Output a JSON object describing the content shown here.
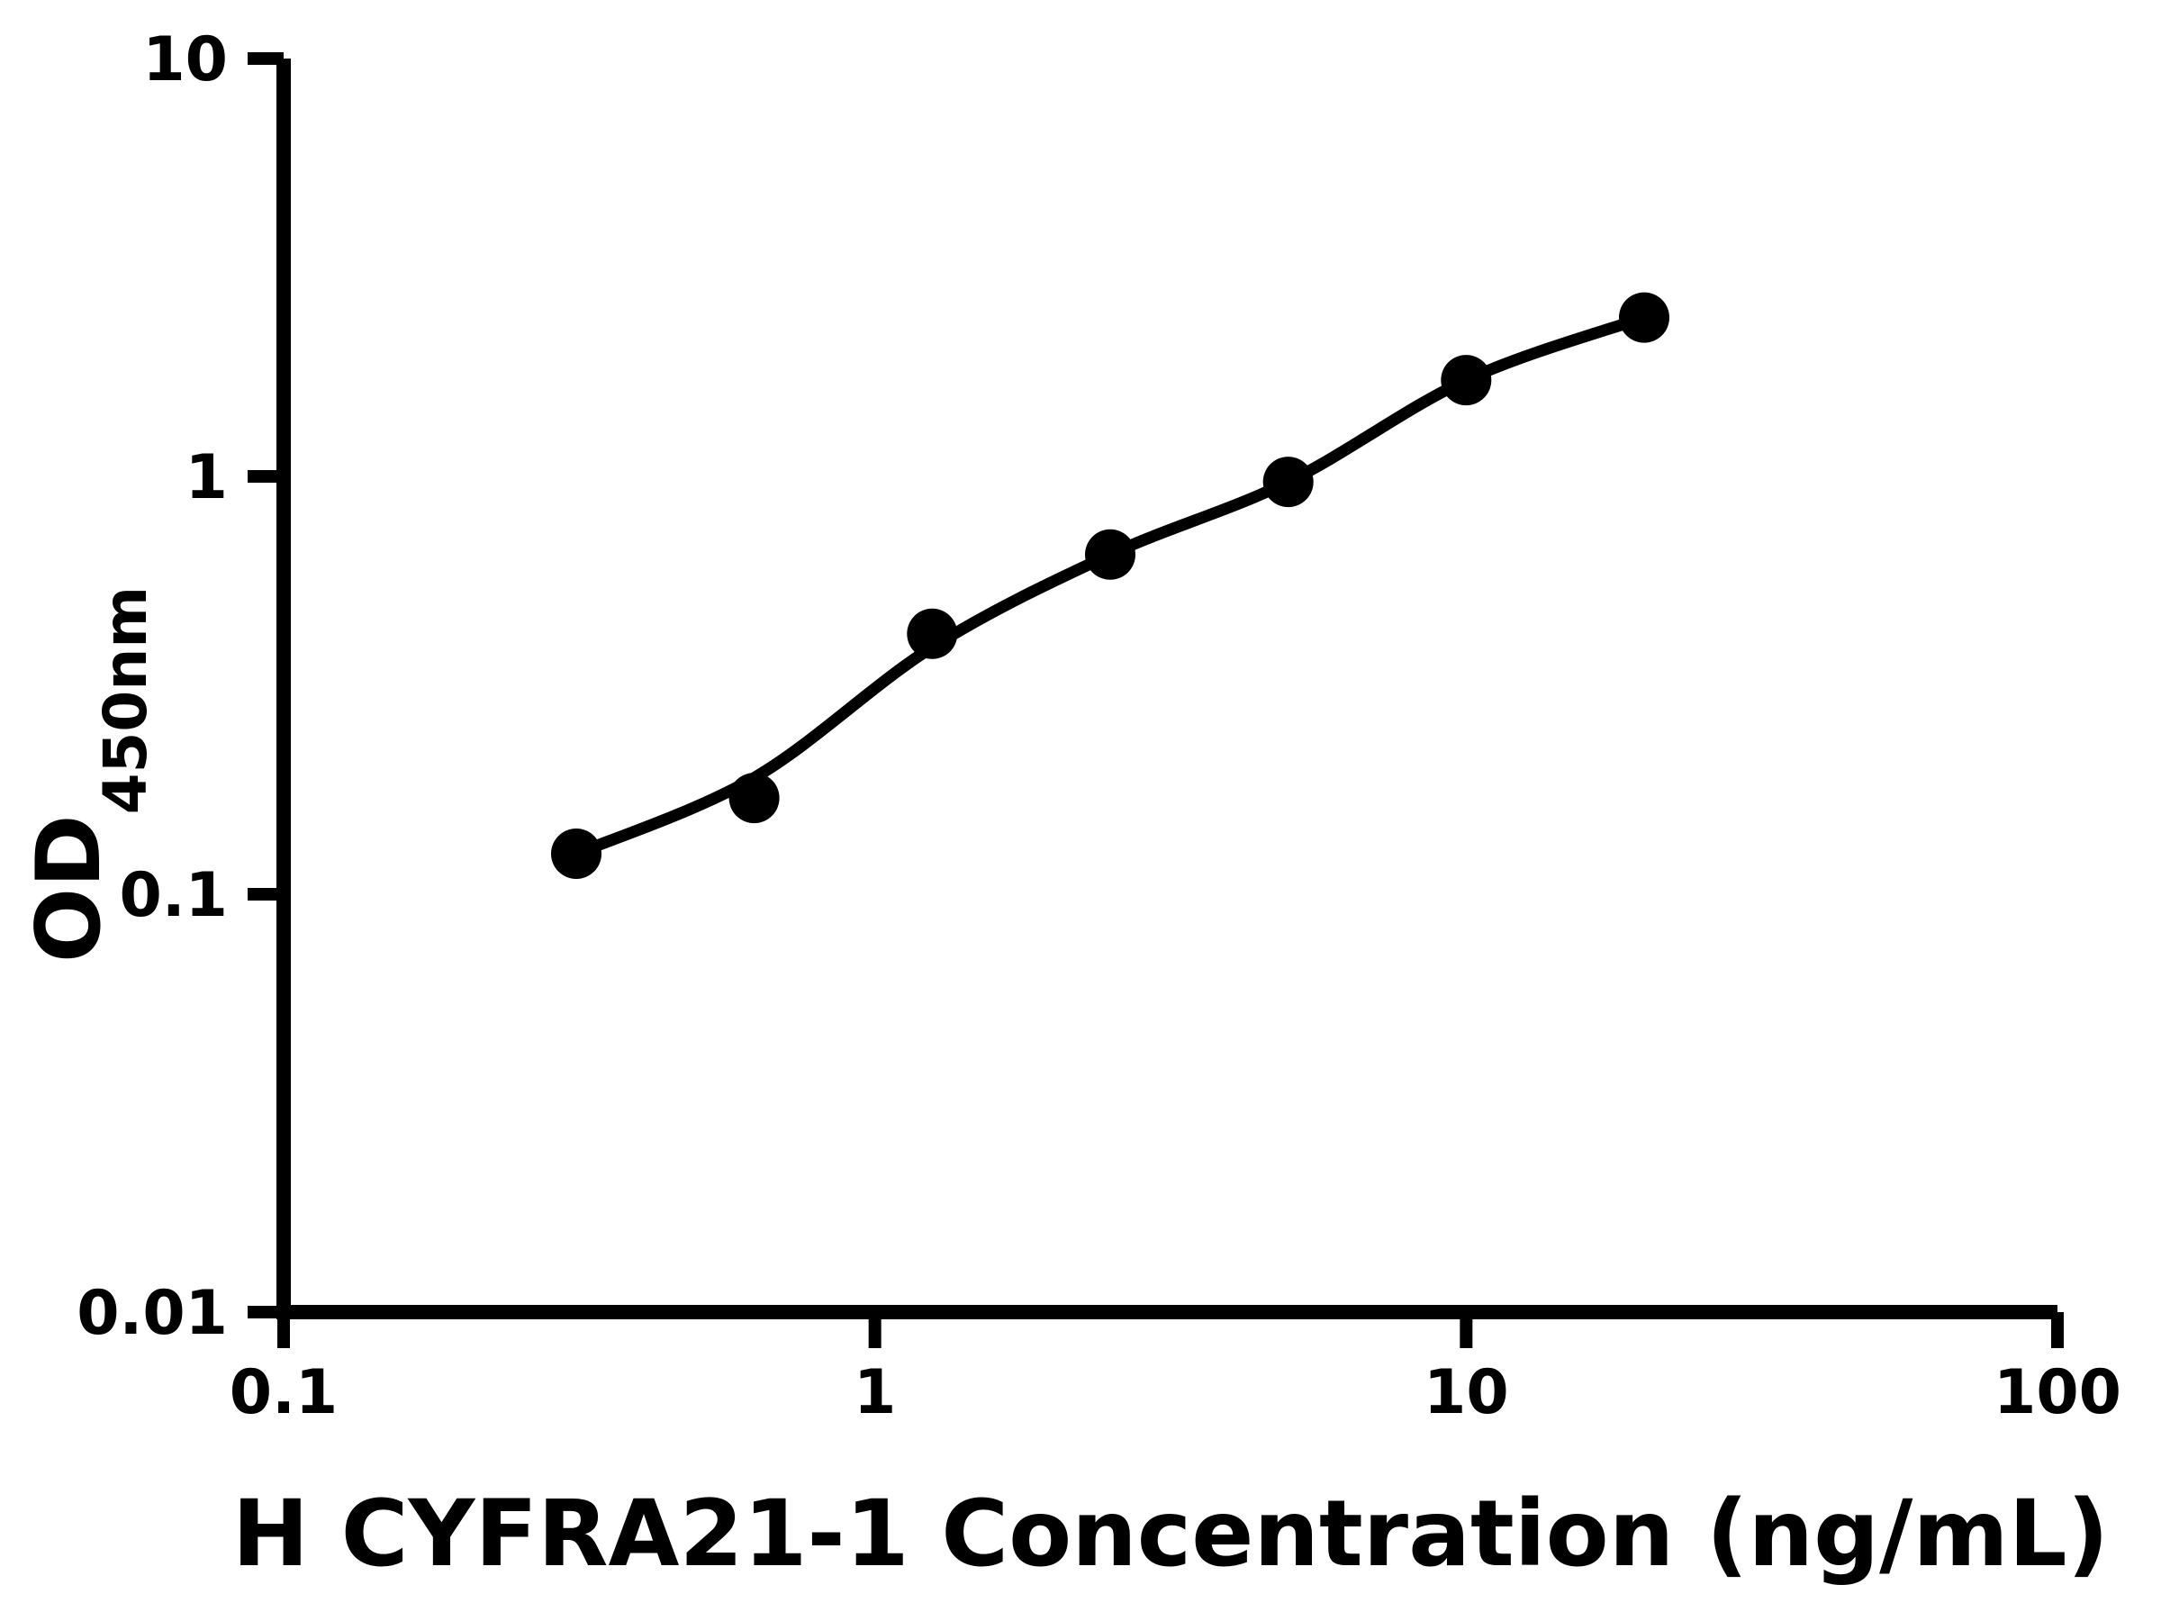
{
  "figure": {
    "background_color": "#ffffff",
    "line_color": "#000000"
  },
  "chart_data": {
    "type": "scatter",
    "title": "",
    "xlabel": "H CYFRA21-1 Concentration (ng/mL)",
    "ylabel_main": "OD",
    "ylabel_sub": "450nm",
    "x_scale": "log",
    "y_scale": "log",
    "xlim": [
      0.1,
      100
    ],
    "ylim": [
      0.01,
      10
    ],
    "grid": false,
    "legend": "none",
    "x_ticks": [
      {
        "value": 0.1,
        "label": "0.1"
      },
      {
        "value": 1,
        "label": "1"
      },
      {
        "value": 10,
        "label": "10"
      },
      {
        "value": 100,
        "label": "100"
      }
    ],
    "y_ticks": [
      {
        "value": 10,
        "label": "10"
      },
      {
        "value": 1,
        "label": "1"
      },
      {
        "value": 0.1,
        "label": "0.1"
      },
      {
        "value": 0.01,
        "label": "0.01"
      }
    ],
    "series": [
      {
        "name": "standard-points",
        "type": "scatter",
        "marker": "filled-circle",
        "color": "#000000",
        "x": [
          0.3125,
          0.625,
          1.25,
          2.5,
          5,
          10,
          20
        ],
        "y": [
          0.125,
          0.17,
          0.42,
          0.65,
          0.97,
          1.7,
          2.4
        ]
      },
      {
        "name": "fit-curve",
        "type": "line",
        "color": "#000000",
        "x": [
          0.3125,
          0.625,
          1.25,
          2.5,
          5,
          10,
          20
        ],
        "y": [
          0.125,
          0.19,
          0.39,
          0.65,
          0.97,
          1.7,
          2.4
        ]
      }
    ]
  }
}
